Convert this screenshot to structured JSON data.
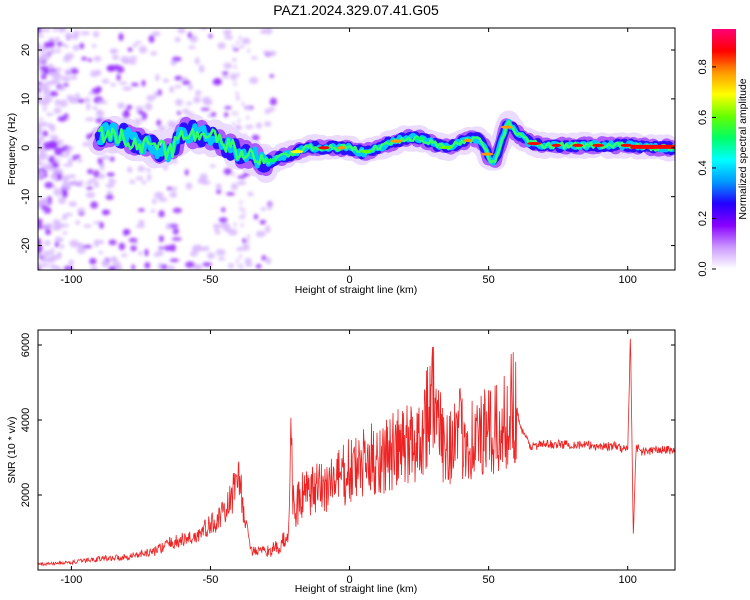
{
  "title": "PAZ1.2024.329.07.41.G05",
  "colorbar": {
    "label": "Normalized spectral amplitude",
    "ticks": [
      "0.0",
      "0.2",
      "0.4",
      "0.6",
      "0.8"
    ],
    "tick_values": [
      0.0,
      0.2,
      0.4,
      0.6,
      0.8
    ],
    "range": [
      0.0,
      0.95
    ],
    "colormap": [
      "#ffffff",
      "#cc99ff",
      "#8800ff",
      "#2200ff",
      "#0099ff",
      "#00ffff",
      "#00ff66",
      "#66ff00",
      "#ffff00",
      "#ff9900",
      "#ff0000",
      "#ff0077"
    ]
  },
  "chart_data": [
    {
      "type": "heatmap",
      "xlabel": "Height of straight line (km)",
      "ylabel": "Frequency (Hz)",
      "xlim": [
        -112,
        117
      ],
      "ylim": [
        -25,
        24.5
      ],
      "xticks": [
        -100,
        -50,
        0,
        50,
        100
      ],
      "xtick_labels": [
        "-100",
        "-50",
        "0",
        "50",
        "100"
      ],
      "yticks": [
        -20,
        -10,
        0,
        10,
        20
      ],
      "ytick_labels": [
        "-20",
        "-10",
        "0",
        "10",
        "20"
      ],
      "ridge": {
        "x": [
          -95,
          -85,
          -75,
          -65,
          -60,
          -55,
          -50,
          -45,
          -40,
          -35,
          -30,
          -25,
          -20,
          -15,
          -10,
          -5,
          0,
          5,
          10,
          15,
          20,
          25,
          30,
          35,
          40,
          45,
          48,
          50,
          52,
          55,
          57,
          60,
          65,
          70,
          80,
          90,
          100,
          110,
          117
        ],
        "freq": [
          2,
          3,
          1,
          -1,
          3,
          3,
          2,
          1,
          -1,
          -2,
          -3,
          -2,
          -1,
          0,
          0,
          0,
          0,
          -1,
          0,
          1,
          2,
          2,
          1,
          0,
          1,
          2,
          1,
          -2,
          -3,
          2,
          5,
          3,
          1,
          0.5,
          0.5,
          0.5,
          0.5,
          0,
          0
        ]
      }
    },
    {
      "type": "line",
      "xlabel": "Height of straight line (km)",
      "ylabel": "SNR (10 * v/v)",
      "xlim": [
        -112,
        117
      ],
      "ylim": [
        0,
        6400
      ],
      "xticks": [
        -100,
        -50,
        0,
        50,
        100
      ],
      "xtick_labels": [
        "-100",
        "-50",
        "0",
        "50",
        "100"
      ],
      "yticks": [
        2000,
        4000,
        6000
      ],
      "ytick_labels": [
        "2000",
        "4000",
        "6000"
      ],
      "color": "#ee2222",
      "series": [
        {
          "x": [
            -112,
            -100,
            -90,
            -80,
            -70,
            -65,
            -60,
            -55,
            -50,
            -45,
            -42,
            -40,
            -38,
            -35,
            -30,
            -25,
            -22,
            -21,
            -20,
            -18,
            -15,
            -10,
            -5,
            0,
            5,
            10,
            15,
            20,
            25,
            28,
            30,
            32,
            35,
            40,
            45,
            50,
            55,
            58,
            60,
            62,
            65,
            70,
            80,
            90,
            95,
            98,
            100,
            101,
            102,
            103,
            105,
            110,
            117
          ],
          "y": [
            150,
            200,
            300,
            350,
            500,
            700,
            800,
            900,
            1200,
            1500,
            2000,
            2800,
            1400,
            500,
            500,
            600,
            1000,
            3400,
            1500,
            1900,
            2000,
            2200,
            2400,
            2600,
            2800,
            3000,
            3100,
            3300,
            3500,
            4200,
            4800,
            3600,
            3400,
            3600,
            3500,
            3600,
            3700,
            4500,
            4300,
            3700,
            3300,
            3350,
            3350,
            3300,
            3300,
            3250,
            3200,
            6300,
            900,
            3300,
            3150,
            3200,
            3200
          ]
        }
      ]
    }
  ]
}
